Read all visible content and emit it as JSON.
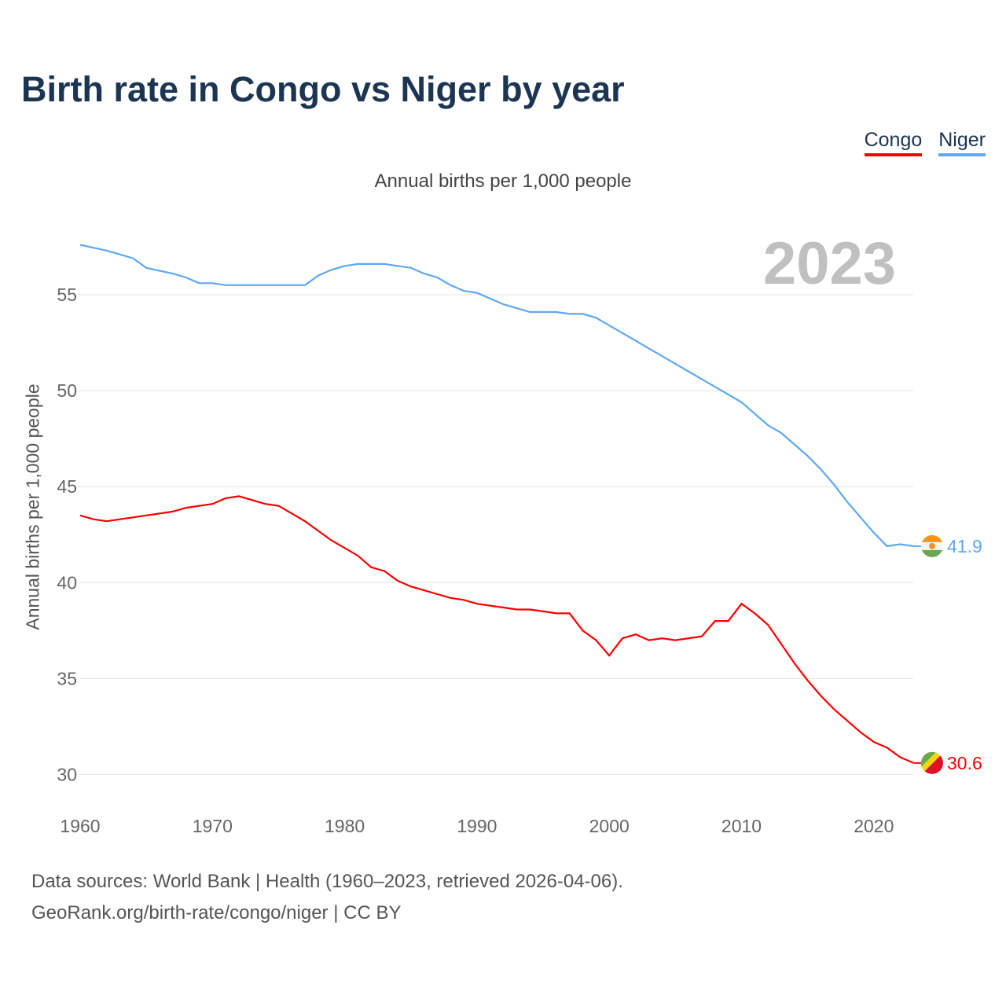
{
  "chart_data": {
    "type": "line",
    "title": "Birth rate in Congo vs Niger by year",
    "subtitle": "Annual births per 1,000 people",
    "ylabel": "Annual births per 1,000 people",
    "xlabel": "",
    "year_label": "2023",
    "xlim": [
      1960,
      2023
    ],
    "ylim": [
      29,
      58.5
    ],
    "xticks": [
      1960,
      1970,
      1980,
      1990,
      2000,
      2010,
      2020
    ],
    "yticks": [
      30,
      35,
      40,
      45,
      50,
      55
    ],
    "legend": [
      "Congo",
      "Niger"
    ],
    "x": [
      1960,
      1961,
      1962,
      1963,
      1964,
      1965,
      1966,
      1967,
      1968,
      1969,
      1970,
      1971,
      1972,
      1973,
      1974,
      1975,
      1976,
      1977,
      1978,
      1979,
      1980,
      1981,
      1982,
      1983,
      1984,
      1985,
      1986,
      1987,
      1988,
      1989,
      1990,
      1991,
      1992,
      1993,
      1994,
      1995,
      1996,
      1997,
      1998,
      1999,
      2000,
      2001,
      2002,
      2003,
      2004,
      2005,
      2006,
      2007,
      2008,
      2009,
      2010,
      2011,
      2012,
      2013,
      2014,
      2015,
      2016,
      2017,
      2018,
      2019,
      2020,
      2021,
      2022,
      2023
    ],
    "series": [
      {
        "name": "Congo",
        "color": "#ff0000",
        "end_label": "30.6",
        "values": [
          43.5,
          43.3,
          43.2,
          43.3,
          43.4,
          43.5,
          43.6,
          43.7,
          43.9,
          44.0,
          44.1,
          44.4,
          44.5,
          44.3,
          44.1,
          44.0,
          43.6,
          43.2,
          42.7,
          42.2,
          41.8,
          41.4,
          40.8,
          40.6,
          40.1,
          39.8,
          39.6,
          39.4,
          39.2,
          39.1,
          38.9,
          38.8,
          38.7,
          38.6,
          38.6,
          38.5,
          38.4,
          38.4,
          37.5,
          37.0,
          36.2,
          37.1,
          37.3,
          37.0,
          37.1,
          37.0,
          37.1,
          37.2,
          38.0,
          38.0,
          38.9,
          38.4,
          37.8,
          36.8,
          35.8,
          34.9,
          34.1,
          33.4,
          32.8,
          32.2,
          31.7,
          31.4,
          30.9,
          30.6
        ]
      },
      {
        "name": "Niger",
        "color": "#5fa8f0",
        "end_label": "41.9",
        "values": [
          57.6,
          57.45,
          57.3,
          57.1,
          56.9,
          56.4,
          56.25,
          56.1,
          55.9,
          55.6,
          55.6,
          55.5,
          55.5,
          55.5,
          55.5,
          55.5,
          55.5,
          55.5,
          56.0,
          56.3,
          56.5,
          56.6,
          56.6,
          56.6,
          56.5,
          56.4,
          56.1,
          55.9,
          55.5,
          55.2,
          55.1,
          54.8,
          54.5,
          54.3,
          54.1,
          54.1,
          54.1,
          54.0,
          54.0,
          53.8,
          53.4,
          53.0,
          52.6,
          52.2,
          51.8,
          51.4,
          51.0,
          50.6,
          50.2,
          49.8,
          49.4,
          48.8,
          48.2,
          47.8,
          47.2,
          46.6,
          45.9,
          45.1,
          44.2,
          43.4,
          42.6,
          41.9,
          42.0,
          41.9
        ]
      }
    ]
  },
  "footer": {
    "line1": "Data sources: World Bank | Health (1960–2023, retrieved 2026-04-06).",
    "line2": "GeoRank.org/birth-rate/congo/niger | CC BY"
  }
}
